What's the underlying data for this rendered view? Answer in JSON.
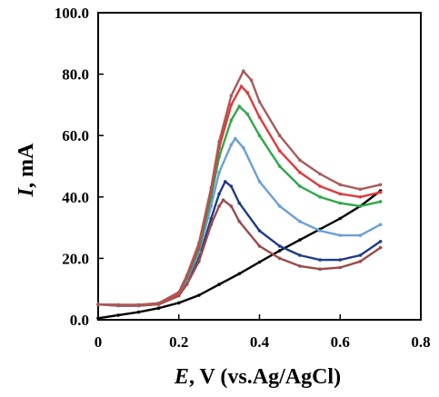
{
  "chart_data": {
    "type": "line",
    "xlabel": {
      "var": "E",
      "rest": ", V (vs.Ag/AgCl)"
    },
    "ylabel": {
      "var": "I",
      "rest": ", mA"
    },
    "xlim": [
      0,
      0.8
    ],
    "ylim": [
      0,
      100
    ],
    "xticks": [
      "0",
      "0.2",
      "0.4",
      "0.6",
      "0.8"
    ],
    "yticks": [
      "0.0",
      "20.0",
      "40.0",
      "60.0",
      "80.0",
      "100.0"
    ],
    "grid": false,
    "legend": "none",
    "series": [
      {
        "color": "#000000",
        "values": [
          [
            0.0,
            0.5
          ],
          [
            0.05,
            1.5
          ],
          [
            0.1,
            2.5
          ],
          [
            0.15,
            3.8
          ],
          [
            0.2,
            5.5
          ],
          [
            0.25,
            8.0
          ],
          [
            0.3,
            11.5
          ],
          [
            0.35,
            15.0
          ],
          [
            0.4,
            18.8
          ],
          [
            0.45,
            22.5
          ],
          [
            0.5,
            26.0
          ],
          [
            0.55,
            29.5
          ],
          [
            0.6,
            33.0
          ],
          [
            0.65,
            37.0
          ],
          [
            0.7,
            42.0
          ]
        ]
      },
      {
        "color": "#1f3c88",
        "values": [
          [
            0.0,
            5.0
          ],
          [
            0.05,
            4.6
          ],
          [
            0.1,
            4.6
          ],
          [
            0.15,
            5.2
          ],
          [
            0.2,
            8.0
          ],
          [
            0.22,
            12.0
          ],
          [
            0.25,
            20.0
          ],
          [
            0.28,
            33.0
          ],
          [
            0.3,
            41.0
          ],
          [
            0.315,
            45.0
          ],
          [
            0.33,
            43.5
          ],
          [
            0.35,
            38.0
          ],
          [
            0.4,
            29.0
          ],
          [
            0.45,
            24.0
          ],
          [
            0.5,
            21.0
          ],
          [
            0.55,
            19.5
          ],
          [
            0.6,
            19.5
          ],
          [
            0.65,
            21.0
          ],
          [
            0.7,
            25.5
          ]
        ]
      },
      {
        "color": "#9b4a4a",
        "values": [
          [
            0.0,
            5.0
          ],
          [
            0.05,
            4.6
          ],
          [
            0.1,
            4.6
          ],
          [
            0.15,
            5.0
          ],
          [
            0.2,
            7.8
          ],
          [
            0.22,
            11.5
          ],
          [
            0.25,
            19.0
          ],
          [
            0.28,
            31.0
          ],
          [
            0.3,
            37.0
          ],
          [
            0.31,
            39.0
          ],
          [
            0.33,
            37.0
          ],
          [
            0.35,
            32.0
          ],
          [
            0.4,
            24.0
          ],
          [
            0.45,
            20.0
          ],
          [
            0.5,
            17.5
          ],
          [
            0.55,
            16.5
          ],
          [
            0.6,
            17.0
          ],
          [
            0.65,
            19.0
          ],
          [
            0.7,
            23.5
          ]
        ]
      },
      {
        "color": "#6a9fd8",
        "values": [
          [
            0.0,
            5.0
          ],
          [
            0.05,
            4.7
          ],
          [
            0.1,
            4.7
          ],
          [
            0.15,
            5.3
          ],
          [
            0.2,
            8.5
          ],
          [
            0.22,
            13.0
          ],
          [
            0.25,
            22.0
          ],
          [
            0.28,
            37.0
          ],
          [
            0.3,
            48.0
          ],
          [
            0.33,
            57.0
          ],
          [
            0.34,
            59.0
          ],
          [
            0.36,
            56.0
          ],
          [
            0.4,
            45.0
          ],
          [
            0.45,
            37.0
          ],
          [
            0.5,
            32.0
          ],
          [
            0.55,
            29.0
          ],
          [
            0.6,
            27.5
          ],
          [
            0.65,
            27.5
          ],
          [
            0.7,
            31.0
          ]
        ]
      },
      {
        "color": "#2ea84a",
        "values": [
          [
            0.0,
            5.0
          ],
          [
            0.05,
            4.8
          ],
          [
            0.1,
            4.8
          ],
          [
            0.15,
            5.3
          ],
          [
            0.2,
            8.5
          ],
          [
            0.22,
            13.5
          ],
          [
            0.25,
            23.0
          ],
          [
            0.28,
            40.0
          ],
          [
            0.3,
            53.0
          ],
          [
            0.33,
            65.0
          ],
          [
            0.35,
            69.5
          ],
          [
            0.37,
            67.0
          ],
          [
            0.4,
            60.0
          ],
          [
            0.45,
            50.0
          ],
          [
            0.5,
            43.5
          ],
          [
            0.55,
            40.0
          ],
          [
            0.6,
            38.0
          ],
          [
            0.65,
            37.0
          ],
          [
            0.7,
            38.5
          ]
        ]
      },
      {
        "color": "#e03a3a",
        "values": [
          [
            0.0,
            5.0
          ],
          [
            0.05,
            4.8
          ],
          [
            0.1,
            4.8
          ],
          [
            0.15,
            5.3
          ],
          [
            0.2,
            8.5
          ],
          [
            0.22,
            14.0
          ],
          [
            0.25,
            24.0
          ],
          [
            0.28,
            42.0
          ],
          [
            0.3,
            56.0
          ],
          [
            0.33,
            70.0
          ],
          [
            0.355,
            76.0
          ],
          [
            0.37,
            74.0
          ],
          [
            0.4,
            66.0
          ],
          [
            0.45,
            55.0
          ],
          [
            0.5,
            48.0
          ],
          [
            0.55,
            43.5
          ],
          [
            0.6,
            41.0
          ],
          [
            0.65,
            40.0
          ],
          [
            0.7,
            41.5
          ]
        ]
      },
      {
        "color": "#a85a5a",
        "values": [
          [
            0.0,
            5.0
          ],
          [
            0.05,
            4.9
          ],
          [
            0.1,
            4.9
          ],
          [
            0.15,
            5.4
          ],
          [
            0.2,
            9.0
          ],
          [
            0.22,
            14.5
          ],
          [
            0.25,
            25.0
          ],
          [
            0.28,
            43.0
          ],
          [
            0.3,
            58.0
          ],
          [
            0.33,
            73.0
          ],
          [
            0.36,
            81.0
          ],
          [
            0.38,
            78.0
          ],
          [
            0.4,
            71.0
          ],
          [
            0.45,
            60.0
          ],
          [
            0.5,
            52.0
          ],
          [
            0.55,
            47.5
          ],
          [
            0.6,
            44.0
          ],
          [
            0.65,
            42.5
          ],
          [
            0.7,
            44.0
          ]
        ]
      }
    ]
  }
}
